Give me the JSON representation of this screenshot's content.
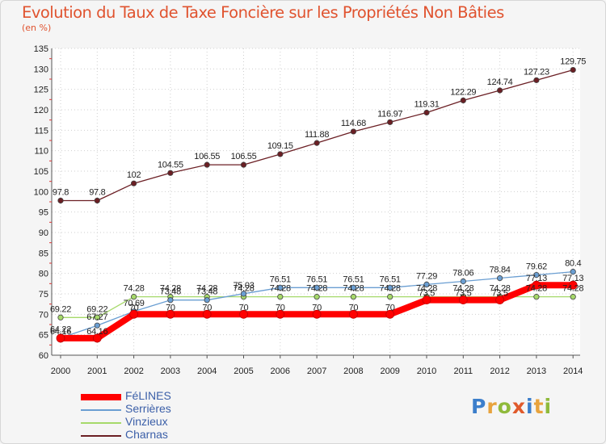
{
  "header": {
    "title": "Evolution du Taux de Taxe Foncière sur les Propriétés Non Bâties",
    "unit": "(en %)"
  },
  "logo": {
    "text": "Proxiti",
    "colors": [
      "#3c7ecb",
      "#e8a33d",
      "#8fba3b",
      "#e05a2b",
      "#3c7ecb",
      "#e8a33d",
      "#8fba3b"
    ]
  },
  "chart_data": {
    "type": "line",
    "title": "Evolution du Taux de Taxe Foncière sur les Propriétés Non Bâties",
    "ylabel": "(en %)",
    "xlabel": "",
    "x": [
      "2000",
      "2001",
      "2002",
      "2003",
      "2004",
      "2005",
      "2006",
      "2007",
      "2008",
      "2009",
      "2010",
      "2011",
      "2012",
      "2013",
      "2014"
    ],
    "ylim": [
      60,
      135
    ],
    "yticks": [
      "60",
      "65",
      "70",
      "75",
      "80",
      "85",
      "90",
      "95",
      "100",
      "105",
      "110",
      "115",
      "120",
      "125",
      "130",
      "135"
    ],
    "grid": true,
    "legend_position": "bottom-left",
    "series": [
      {
        "name": "Charnas",
        "color": "#6b1f24",
        "values": [
          97.8,
          97.8,
          102,
          104.55,
          106.55,
          106.55,
          109.15,
          111.88,
          114.68,
          116.97,
          119.31,
          122.29,
          124.74,
          127.23,
          129.75
        ],
        "labels": [
          "97.8",
          "97.8",
          "102",
          "104.55",
          "106.55",
          "106.55",
          "109.15",
          "111.88",
          "114.68",
          "116.97",
          "119.31",
          "122.29",
          "124.74",
          "127.23",
          "129.75"
        ]
      },
      {
        "name": "Vinzieux",
        "color": "#a6d96a",
        "values": [
          69.22,
          69.22,
          74.28,
          74.28,
          74.28,
          74.28,
          74.28,
          74.28,
          74.28,
          74.28,
          74.28,
          74.28,
          74.28,
          74.28,
          74.28
        ],
        "labels": [
          "69.22",
          "69.22",
          "74.28",
          "74.28",
          "74.28",
          "74.28",
          "74.28",
          "74.28",
          "74.28",
          "74.28",
          "74.28",
          "74.28",
          "74.28",
          "74.28",
          "74.28"
        ]
      },
      {
        "name": "Serrières",
        "color": "#6a9ed2",
        "values": [
          64.22,
          67.27,
          70.69,
          73.48,
          73.48,
          75.03,
          76.51,
          76.51,
          76.51,
          76.51,
          77.29,
          78.06,
          78.84,
          79.62,
          80.4
        ],
        "labels": [
          "64.22",
          "67.27",
          "70.69",
          "73.48",
          "73.48",
          "75.03",
          "76.51",
          "76.51",
          "76.51",
          "76.51",
          "77.29",
          "78.06",
          "78.84",
          "79.62",
          "80.4"
        ]
      },
      {
        "name": "FéLINES",
        "color": "#ff0000",
        "values": [
          64.16,
          64.16,
          70,
          70,
          70,
          70,
          70,
          70,
          70,
          70,
          73.5,
          73.5,
          73.5,
          77.13,
          77.13
        ],
        "labels": [
          "64.16",
          "64.16",
          "70",
          "70",
          "70",
          "70",
          "70",
          "70",
          "70",
          "70",
          "73.5",
          "73.5",
          "73.5",
          "77.13",
          "77.13"
        ]
      }
    ],
    "legend": [
      {
        "name": "FéLINES",
        "color": "#ff0000",
        "width": 8
      },
      {
        "name": "Serrières",
        "color": "#6a9ed2",
        "width": 1.3
      },
      {
        "name": "Vinzieux",
        "color": "#a6d96a",
        "width": 1.3
      },
      {
        "name": "Charnas",
        "color": "#6b1f24",
        "width": 1.3
      }
    ]
  }
}
